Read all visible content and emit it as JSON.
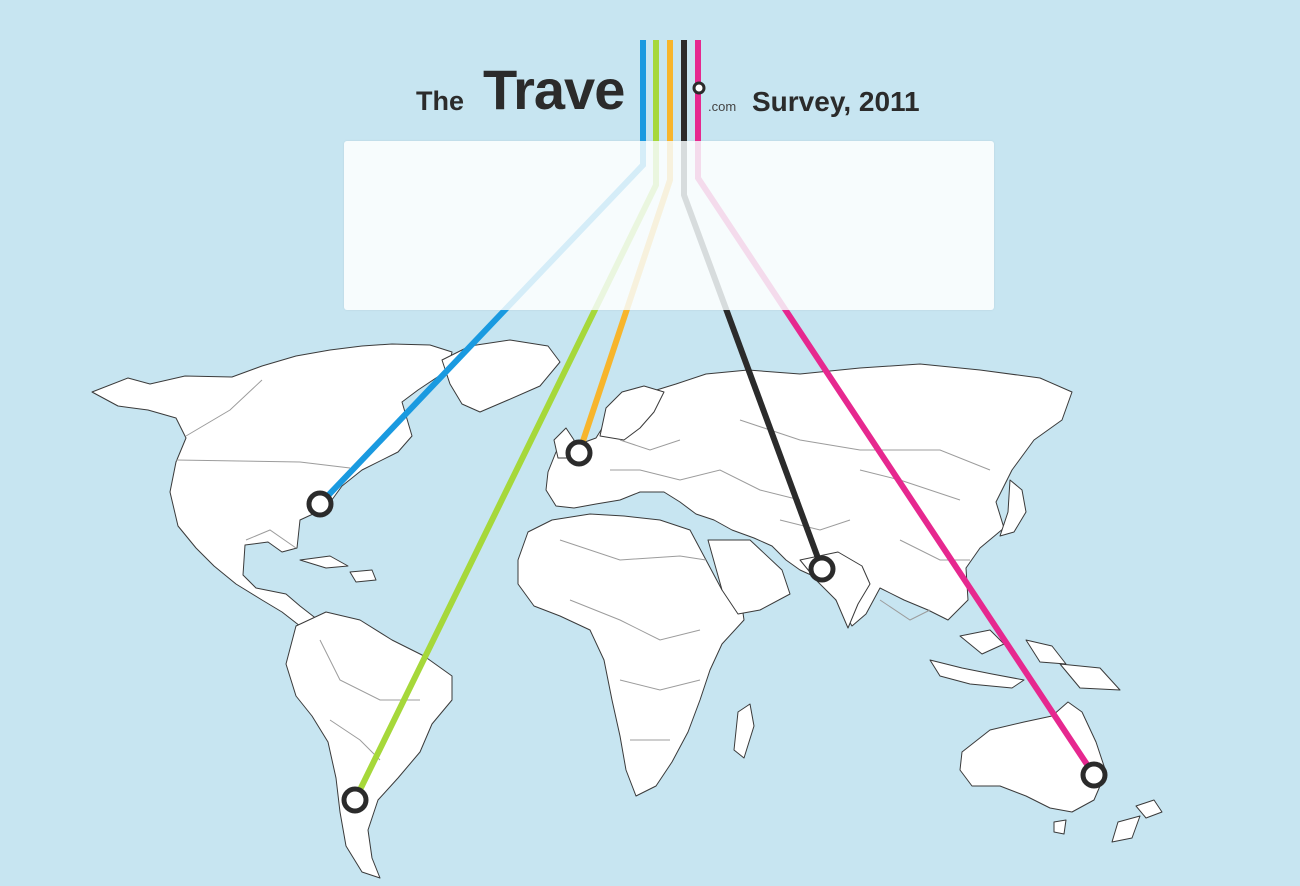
{
  "header": {
    "prefix": "The",
    "brand": "Trave",
    "domain_suffix": ".com",
    "suffix": "Survey, 2011"
  },
  "colors": {
    "background": "#c7e5f1",
    "land": "#ffffff",
    "border": "#9c9c9c",
    "text": "#2b2b2b",
    "lines": [
      "#1a9ae0",
      "#a6d83a",
      "#f7b52c",
      "#2b2b2b",
      "#e6288f"
    ]
  },
  "routes": [
    {
      "name": "route-blue",
      "color": "#1a9ae0",
      "destination": "north-america-east"
    },
    {
      "name": "route-green",
      "color": "#a6d83a",
      "destination": "south-america"
    },
    {
      "name": "route-orange",
      "color": "#f7b52c",
      "destination": "western-europe"
    },
    {
      "name": "route-black",
      "color": "#2b2b2b",
      "destination": "south-asia"
    },
    {
      "name": "route-pink",
      "color": "#e6288f",
      "destination": "australia"
    }
  ],
  "panel": {
    "visible": true
  }
}
